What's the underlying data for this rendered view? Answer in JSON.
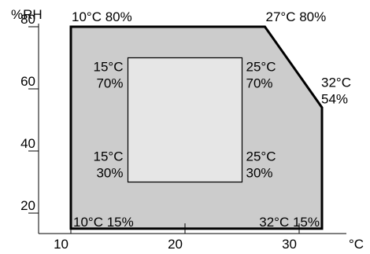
{
  "chart_data": {
    "type": "area",
    "title": "",
    "xlabel": "°C",
    "ylabel": "%RH",
    "xlim": [
      10,
      34
    ],
    "ylim": [
      17,
      85
    ],
    "x_ticks": [
      {
        "value": 10,
        "label": "10"
      },
      {
        "value": 20,
        "label": "20"
      },
      {
        "value": 30,
        "label": "30"
      }
    ],
    "y_ticks": [
      {
        "value": 20,
        "label": "20"
      },
      {
        "value": 40,
        "label": "40"
      },
      {
        "value": 60,
        "label": "60"
      },
      {
        "value": 80,
        "label": "80"
      }
    ],
    "regions": [
      {
        "color": "#cccccc",
        "points": [
          [
            10,
            80
          ],
          [
            27,
            80
          ],
          [
            32,
            54
          ],
          [
            32,
            15
          ],
          [
            10,
            15
          ]
        ]
      },
      {
        "color": "#e6e6e6",
        "points": [
          [
            15,
            70
          ],
          [
            25,
            70
          ],
          [
            25,
            30
          ],
          [
            15,
            30
          ]
        ]
      }
    ],
    "annotations": [
      {
        "lines": [
          "10°C 80%"
        ],
        "x": 10,
        "y": 80,
        "place": "above-right"
      },
      {
        "lines": [
          "27°C 80%"
        ],
        "x": 27,
        "y": 80,
        "place": "above-right"
      },
      {
        "lines": [
          "32°C",
          "54%"
        ],
        "x": 32,
        "y": 54,
        "place": "right-above"
      },
      {
        "lines": [
          "10°C 15%"
        ],
        "x": 10,
        "y": 15,
        "place": "inside-top-right"
      },
      {
        "lines": [
          "32°C 15%"
        ],
        "x": 32,
        "y": 15,
        "place": "inside-top-left"
      },
      {
        "lines": [
          "15°C",
          "70%"
        ],
        "x": 15,
        "y": 70,
        "place": "left-below"
      },
      {
        "lines": [
          "25°C",
          "70%"
        ],
        "x": 25,
        "y": 70,
        "place": "right-below"
      },
      {
        "lines": [
          "15°C",
          "30%"
        ],
        "x": 15,
        "y": 30,
        "place": "left-above"
      },
      {
        "lines": [
          "25°C",
          "30%"
        ],
        "x": 25,
        "y": 30,
        "place": "right-above"
      }
    ]
  }
}
